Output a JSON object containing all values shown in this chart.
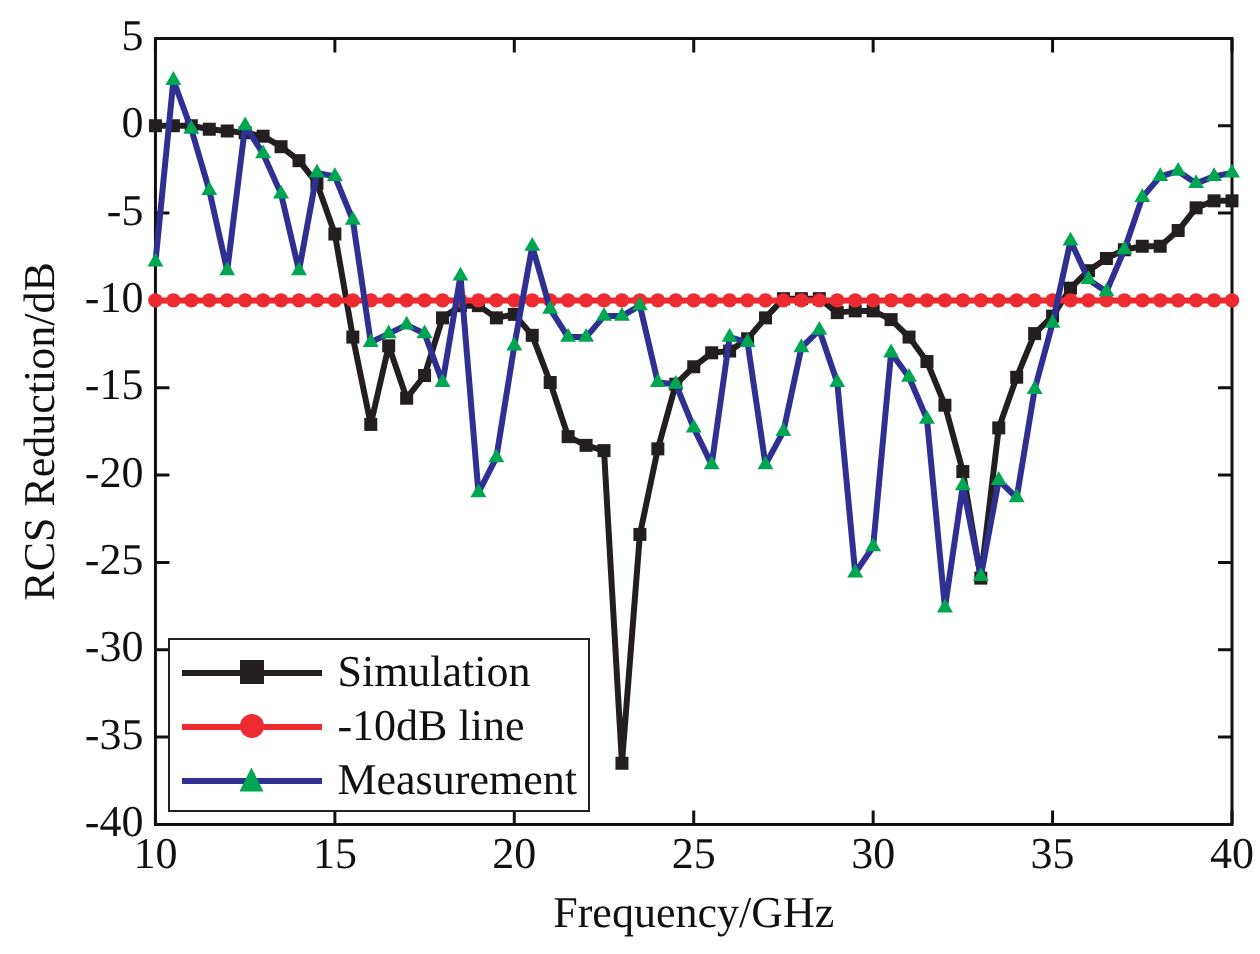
{
  "chart_data": {
    "type": "line",
    "xlabel": "Frequency/GHz",
    "ylabel": "RCS Reduction/dB",
    "x": [
      10,
      10.5,
      11,
      11.5,
      12,
      12.5,
      13,
      13.5,
      14,
      14.5,
      15,
      15.5,
      16,
      16.5,
      17,
      17.5,
      18,
      18.5,
      19,
      19.5,
      20,
      20.5,
      21,
      21.5,
      22,
      22.5,
      23,
      23.5,
      24,
      24.5,
      25,
      25.5,
      26,
      26.5,
      27,
      27.5,
      28,
      28.5,
      29,
      29.5,
      30,
      30.5,
      31,
      31.5,
      32,
      32.5,
      33,
      33.5,
      34,
      34.5,
      35,
      35.5,
      36,
      36.5,
      37,
      37.5,
      38,
      38.5,
      39,
      39.5,
      40
    ],
    "series": [
      {
        "name": "Simulation",
        "color": "#231f20",
        "marker": "square",
        "values": [
          0,
          0,
          0,
          -0.2,
          -0.3,
          -0.4,
          -0.6,
          -1.2,
          -2,
          -3.3,
          -6.2,
          -12.1,
          -17.1,
          -12.6,
          -15.6,
          -14.3,
          -11,
          -10.3,
          -10.3,
          -11,
          -10.8,
          -12,
          -14.7,
          -17.8,
          -18.3,
          -18.6,
          -36.5,
          -23.4,
          -18.5,
          -14.8,
          -13.8,
          -13,
          -12.9,
          -12.2,
          -11,
          -9.9,
          -9.9,
          -9.9,
          -10.7,
          -10.6,
          -10.6,
          -11.1,
          -12.1,
          -13.5,
          -16,
          -19.8,
          -25.9,
          -17.3,
          -14.4,
          -11.9,
          -10.9,
          -9.3,
          -8.3,
          -7.6,
          -7.1,
          -6.9,
          -6.9,
          -6,
          -4.7,
          -4.3,
          -4.3
        ]
      },
      {
        "name": "-10dB line",
        "color": "#ec2a2f",
        "marker": "circle",
        "values": [
          -10,
          -10,
          -10,
          -10,
          -10,
          -10,
          -10,
          -10,
          -10,
          -10,
          -10,
          -10,
          -10,
          -10,
          -10,
          -10,
          -10,
          -10,
          -10,
          -10,
          -10,
          -10,
          -10,
          -10,
          -10,
          -10,
          -10,
          -10,
          -10,
          -10,
          -10,
          -10,
          -10,
          -10,
          -10,
          -10,
          -10,
          -10,
          -10,
          -10,
          -10,
          -10,
          -10,
          -10,
          -10,
          -10,
          -10,
          -10,
          -10,
          -10,
          -10,
          -10,
          -10,
          -10,
          -10,
          -10,
          -10,
          -10,
          -10,
          -10,
          -10
        ]
      },
      {
        "name": "Measurement",
        "color": "#2e3192",
        "marker": "triangle",
        "colors": [
          "#00a651",
          "#00a651",
          "#00a651",
          "#00a651",
          "#00a651",
          "#00a651",
          "#00a651",
          "#00a651",
          "#00a651",
          "#00a651",
          "#00a651",
          "#00a651",
          "#00a651",
          "#00a651",
          "#00a651",
          "#00a651",
          "#00a651",
          "#00a651",
          "#00a651",
          "#00a651",
          "#00a651",
          "#00a651",
          "#00a651",
          "#00a651",
          "#00a651",
          "#00a651",
          "#00a651",
          "#00a651",
          "#00a651",
          "#00a651",
          "#00a651",
          "#00a651",
          "#00a651",
          "#00a651",
          "#00a651",
          "#00a651",
          "#00a651",
          "#00a651",
          "#00a651",
          "#00a651",
          "#00a651",
          "#00a651",
          "#00a651",
          "#00a651",
          "#00a651",
          "#00a651",
          "#00a651",
          "#00a651",
          "#00a651",
          "#00a651",
          "#00a651",
          "#00a651",
          "#00a651",
          "#00a651",
          "#00a651",
          "#00a651",
          "#00a651",
          "#00a651",
          "#00a651",
          "#00a651",
          "#00a651"
        ],
        "values": [
          -7.8,
          2.6,
          -0.2,
          -3.7,
          -8.3,
          0,
          -1.6,
          -3.9,
          -8.3,
          -2.7,
          -2.9,
          -5.4,
          -12.4,
          -11.9,
          -11.4,
          -11.9,
          -14.7,
          -8.6,
          -21,
          -19,
          -12.6,
          -6.9,
          -10.5,
          -12.1,
          -12.1,
          -10.9,
          -10.9,
          -10.3,
          -14.7,
          -14.8,
          -17.3,
          -19.4,
          -12.1,
          -12.4,
          -19.4,
          -17.5,
          -12.7,
          -11.7,
          -14.7,
          -25.6,
          -24.1,
          -13,
          -14.4,
          -16.8,
          -27.6,
          -20.6,
          -25.8,
          -20.3,
          -21.3,
          -15.1,
          -11.3,
          -6.6,
          -8.8,
          -9.5,
          -7.1,
          -4.1,
          -2.9,
          -2.6,
          -3.3,
          -2.9,
          -2.7
        ]
      }
    ],
    "xlim": [
      10,
      40
    ],
    "xticks": [
      10,
      15,
      20,
      25,
      30,
      35,
      40
    ],
    "ylim": [
      -40,
      5
    ],
    "yticks": [
      -40,
      -35,
      -30,
      -25,
      -20,
      -15,
      -10,
      -5,
      0,
      5
    ],
    "grid": false,
    "legend": "bottom left",
    "line_style": "solid"
  }
}
